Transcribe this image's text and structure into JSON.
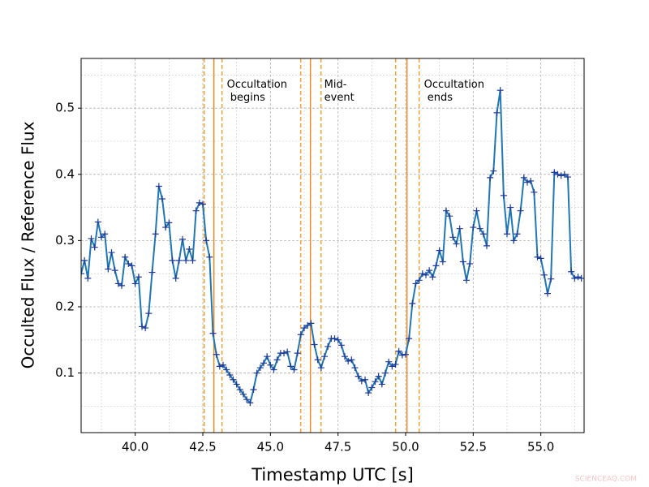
{
  "chart_data": {
    "type": "line",
    "xlabel": "Timestamp UTC [s]",
    "ylabel": "Occulted Flux / Reference Flux",
    "watermark": "SCIENCEAQ.COM",
    "xlim": [
      38.0,
      56.6
    ],
    "ylim": [
      0.01,
      0.575
    ],
    "xticks": [
      {
        "value": 40,
        "label": "40.0"
      },
      42.5,
      {
        "value": 45,
        "label": "45.0"
      },
      47.5,
      {
        "value": 50,
        "label": "50.0"
      },
      52.5,
      {
        "value": 55,
        "label": "55.0"
      }
    ],
    "yticks": [
      0.1,
      0.2,
      0.3,
      0.4,
      0.5
    ],
    "x_minor_ticks": [
      38.75,
      41.25,
      43.75,
      46.25,
      48.75,
      51.25,
      53.75,
      56.25
    ],
    "y_minor_ticks": [
      0.05,
      0.15,
      0.25,
      0.35,
      0.45,
      0.55
    ],
    "grid": true,
    "x": [
      38,
      38.125,
      38.25,
      38.375,
      38.5,
      38.625,
      38.75,
      38.875,
      39,
      39.125,
      39.25,
      39.375,
      39.5,
      39.625,
      39.75,
      39.875,
      40,
      40.125,
      40.25,
      40.375,
      40.5,
      40.625,
      40.75,
      40.875,
      41,
      41.125,
      41.25,
      41.375,
      41.5,
      41.625,
      41.75,
      41.875,
      42,
      42.125,
      42.25,
      42.375,
      42.5,
      42.625,
      42.75,
      42.875,
      43,
      43.125,
      43.25,
      43.375,
      43.5,
      43.625,
      43.75,
      43.875,
      44,
      44.125,
      44.25,
      44.375,
      44.5,
      44.625,
      44.75,
      44.875,
      45,
      45.125,
      45.25,
      45.375,
      45.5,
      45.625,
      45.75,
      45.875,
      46,
      46.125,
      46.25,
      46.375,
      46.5,
      46.625,
      46.75,
      46.875,
      47,
      47.125,
      47.25,
      47.375,
      47.5,
      47.625,
      47.75,
      47.875,
      48,
      48.125,
      48.25,
      48.375,
      48.5,
      48.625,
      48.75,
      48.875,
      49,
      49.125,
      49.25,
      49.375,
      49.5,
      49.625,
      49.75,
      49.875,
      50,
      50.125,
      50.25,
      50.375,
      50.5,
      50.625,
      50.75,
      50.875,
      51,
      51.125,
      51.25,
      51.375,
      51.5,
      51.625,
      51.75,
      51.875,
      52,
      52.125,
      52.25,
      52.375,
      52.5,
      52.625,
      52.75,
      52.875,
      53,
      53.125,
      53.25,
      53.375,
      53.5,
      53.625,
      53.75,
      53.875,
      54,
      54.125,
      54.25,
      54.375,
      54.5,
      54.625,
      54.75,
      54.875,
      55,
      55.125,
      55.25,
      55.375,
      55.5,
      55.625,
      55.75,
      55.875,
      56,
      56.125,
      56.25,
      56.375,
      56.5
    ],
    "series": [
      {
        "color": "#1f77b4",
        "marker_color": "#1f3a9a",
        "values": [
          0.25,
          0.27,
          0.243,
          0.303,
          0.29,
          0.328,
          0.305,
          0.31,
          0.257,
          0.282,
          0.255,
          0.235,
          0.232,
          0.275,
          0.265,
          0.262,
          0.235,
          0.245,
          0.17,
          0.168,
          0.19,
          0.252,
          0.31,
          0.382,
          0.363,
          0.32,
          0.327,
          0.27,
          0.243,
          0.27,
          0.302,
          0.27,
          0.287,
          0.27,
          0.345,
          0.357,
          0.355,
          0.3,
          0.275,
          0.16,
          0.128,
          0.11,
          0.112,
          0.105,
          0.097,
          0.09,
          0.083,
          0.075,
          0.068,
          0.06,
          0.055,
          0.075,
          0.1,
          0.108,
          0.115,
          0.125,
          0.112,
          0.105,
          0.12,
          0.13,
          0.13,
          0.132,
          0.11,
          0.105,
          0.13,
          0.158,
          0.168,
          0.172,
          0.175,
          0.143,
          0.12,
          0.108,
          0.125,
          0.14,
          0.152,
          0.152,
          0.15,
          0.142,
          0.125,
          0.118,
          0.12,
          0.108,
          0.095,
          0.088,
          0.09,
          0.07,
          0.078,
          0.087,
          0.095,
          0.083,
          0.1,
          0.117,
          0.11,
          0.113,
          0.133,
          0.127,
          0.128,
          0.152,
          0.205,
          0.235,
          0.24,
          0.25,
          0.248,
          0.255,
          0.245,
          0.262,
          0.285,
          0.268,
          0.345,
          0.337,
          0.305,
          0.295,
          0.318,
          0.268,
          0.24,
          0.265,
          0.32,
          0.345,
          0.318,
          0.31,
          0.292,
          0.395,
          0.405,
          0.493,
          0.527,
          0.368,
          0.31,
          0.35,
          0.3,
          0.31,
          0.345,
          0.395,
          0.388,
          0.39,
          0.373,
          0.275,
          0.273,
          0.248,
          0.22,
          0.242,
          0.403,
          0.4,
          0.398,
          0.4,
          0.396,
          0.253,
          0.243,
          0.245,
          0.243
        ]
      }
    ],
    "vlines": [
      {
        "x": 42.55,
        "style": "dashed",
        "color": "#f5a030"
      },
      {
        "x": 42.91,
        "style": "solid",
        "color": "#f08a20"
      },
      {
        "x": 43.21,
        "style": "dashed",
        "color": "#f5a030"
      },
      {
        "x": 46.12,
        "style": "dashed",
        "color": "#f5a030"
      },
      {
        "x": 46.48,
        "style": "solid",
        "color": "#f08a20"
      },
      {
        "x": 46.87,
        "style": "dashed",
        "color": "#f5a030"
      },
      {
        "x": 49.63,
        "style": "dashed",
        "color": "#f5a030"
      },
      {
        "x": 50.05,
        "style": "solid",
        "color": "#f08a20"
      },
      {
        "x": 50.5,
        "style": "dashed",
        "color": "#f5a030"
      }
    ],
    "annotations": [
      {
        "x": 43.39,
        "y": 0.535,
        "lines": [
          "Occultation",
          " begins"
        ]
      },
      {
        "x": 46.99,
        "y": 0.535,
        "lines": [
          "Mid-",
          "event"
        ]
      },
      {
        "x": 50.68,
        "y": 0.535,
        "lines": [
          "Occultation",
          " ends"
        ]
      }
    ]
  }
}
